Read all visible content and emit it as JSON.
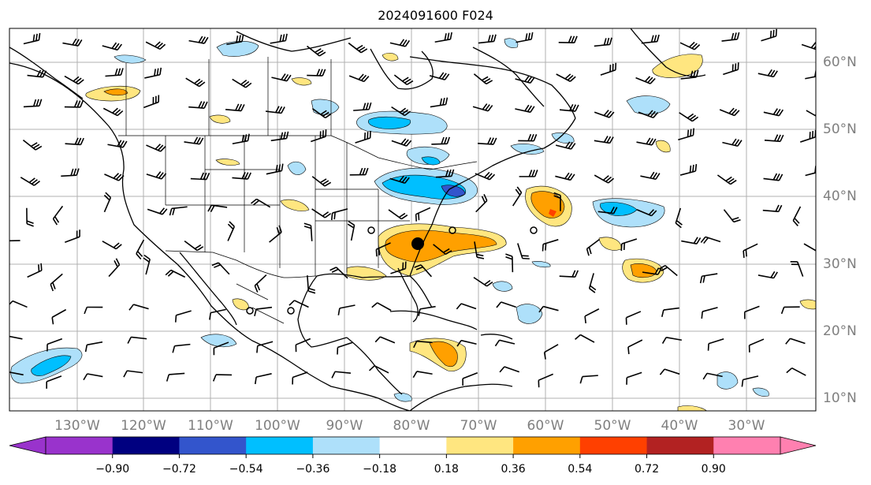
{
  "title": "2024091600 F024",
  "map": {
    "lat_labels": [
      "60°N",
      "50°N",
      "40°N",
      "30°N",
      "20°N",
      "10°N"
    ],
    "lon_labels": [
      "130°W",
      "120°W",
      "110°W",
      "100°W",
      "90°W",
      "80°W",
      "70°W",
      "60°W",
      "50°W",
      "40°W",
      "30°W"
    ]
  },
  "colorbar": {
    "colors": [
      "#9933cc",
      "#000080",
      "#3355cc",
      "#00bfff",
      "#aee0fa",
      "#ffffff",
      "#ffe680",
      "#ffa000",
      "#ff4000",
      "#b22222",
      "#ff80b0"
    ],
    "extend_low_color": "#9933cc",
    "extend_high_color": "#ff80b0",
    "tick_labels": [
      "−0.90",
      "−0.72",
      "−0.54",
      "−0.36",
      "−0.18",
      "0.18",
      "0.36",
      "0.54",
      "0.72",
      "0.90"
    ]
  }
}
